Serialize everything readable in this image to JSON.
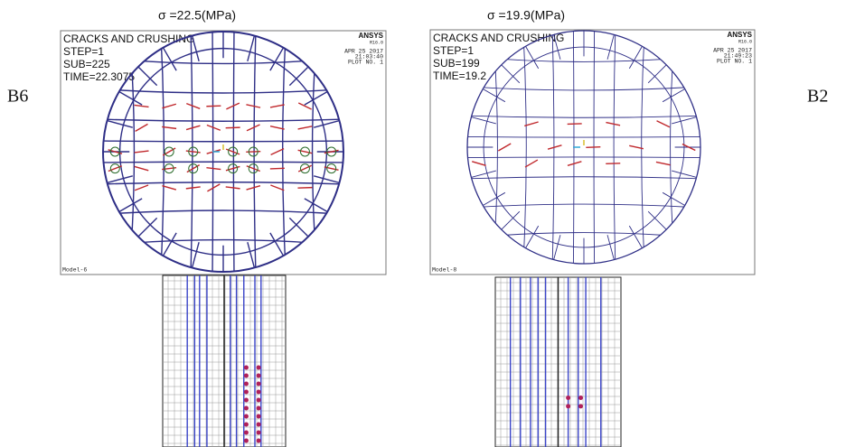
{
  "panels": [
    {
      "stress_label": "σ =22.5(MPa)",
      "beam_label": "B6",
      "header": {
        "title": "CRACKS AND CRUSHING",
        "step": "STEP=1",
        "sub": "SUB=225",
        "time": "TIME=22.3075",
        "logo": "ANSYS",
        "version": "R16.0",
        "date": "APR 25 2017",
        "clock": "21:03:40",
        "plot": "PLOT NO.   1",
        "model": "Model-6"
      }
    },
    {
      "stress_label": "σ =19.9(MPa)",
      "beam_label": "B2",
      "header": {
        "title": "CRACKS AND CRUSHING",
        "step": "STEP=1",
        "sub": "SUB=199",
        "time": "TIME=19.2",
        "logo": "ANSYS",
        "version": "R16.0",
        "date": "APR 25 2017",
        "clock": "21:49:23",
        "plot": "PLOT NO.   1",
        "model": "Model-8"
      }
    }
  ]
}
